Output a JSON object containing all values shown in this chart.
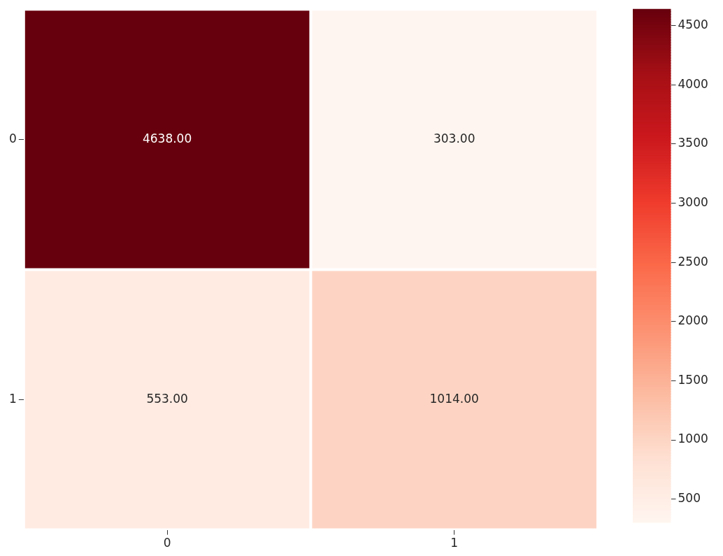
{
  "chart_data": {
    "type": "heatmap",
    "categories": [
      "0",
      "1"
    ],
    "y_categories": [
      "0",
      "1"
    ],
    "cells": [
      [
        4638,
        303
      ],
      [
        553,
        1014
      ]
    ],
    "cell_labels": [
      [
        "4638.00",
        "303.00"
      ],
      [
        "553.00",
        "1014.00"
      ]
    ],
    "clim": [
      303,
      4638
    ],
    "cticks": [
      500,
      1000,
      1500,
      2000,
      2500,
      3000,
      3500,
      4000,
      4500
    ]
  }
}
